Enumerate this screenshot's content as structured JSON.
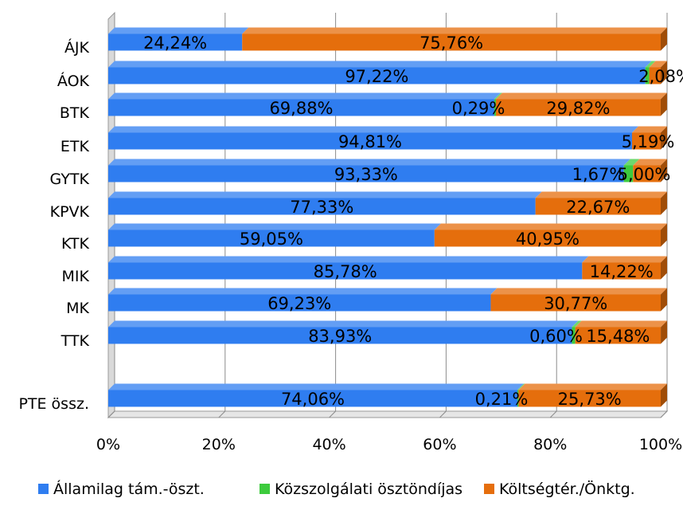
{
  "chart_data": {
    "type": "bar",
    "orientation": "horizontal",
    "stacked": "percent",
    "title": "",
    "xlabel": "",
    "ylabel": "",
    "xlim": [
      0,
      100
    ],
    "x_ticks": [
      "0%",
      "20%",
      "40%",
      "60%",
      "80%",
      "100%"
    ],
    "grid": true,
    "legend_position": "bottom",
    "categories": [
      "ÁJK",
      "ÁOK",
      "BTK",
      "ETK",
      "GYTK",
      "KPVK",
      "KTK",
      "MIK",
      "MK",
      "TTK",
      "PTE össz."
    ],
    "series": [
      {
        "name": "Államilag tám.-öszt.",
        "color": "#2F7DF0",
        "values": [
          24.24,
          97.22,
          69.88,
          94.81,
          93.33,
          77.33,
          59.05,
          85.78,
          69.23,
          83.93,
          74.06
        ],
        "labels": [
          "24,24%",
          "97,22%",
          "69,88%",
          "94,81%",
          "93,33%",
          "77,33%",
          "59,05%",
          "85,78%",
          "69,23%",
          "83,93%",
          "74,06%"
        ]
      },
      {
        "name": "Közszolgálati ösztöndíjas",
        "color": "#3DCB3D",
        "values": [
          0,
          0.7,
          0.29,
          0,
          1.67,
          0,
          0,
          0,
          0,
          0.6,
          0.21
        ],
        "labels": [
          "",
          "",
          "0,29%",
          "",
          "1,67%",
          "",
          "",
          "",
          "",
          "0,60%",
          "0,21%"
        ]
      },
      {
        "name": "Költségtér./Önktg.",
        "color": "#E56E0C",
        "values": [
          75.76,
          2.08,
          29.82,
          5.19,
          5.0,
          22.67,
          40.95,
          14.22,
          30.77,
          15.48,
          25.73
        ],
        "labels": [
          "75,76%",
          "2,08%",
          "29,82%",
          "5,19%",
          "5,00%",
          "22,67%",
          "40,95%",
          "14,22%",
          "30,77%",
          "15,48%",
          "25,73%"
        ]
      }
    ]
  }
}
